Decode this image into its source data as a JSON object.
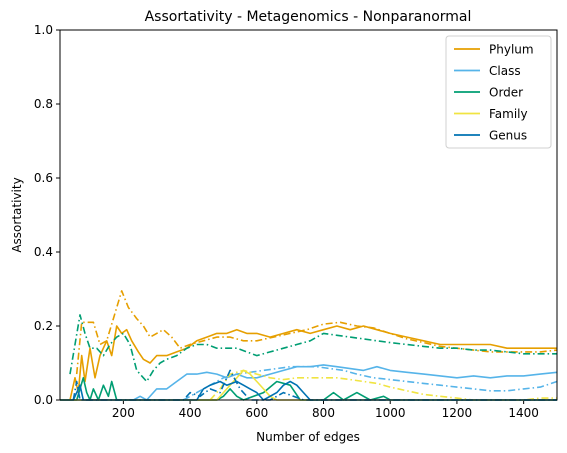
{
  "chart_data": {
    "type": "line",
    "title": "Assortativity - Metagenomics - Nonparanormal",
    "xlabel": "Number of edges",
    "ylabel": "Assortativity",
    "xlim": [
      10,
      1500
    ],
    "ylim": [
      0,
      1
    ],
    "xticks": [
      200,
      400,
      600,
      800,
      1000,
      1200,
      1400
    ],
    "yticks": [
      0.0,
      0.2,
      0.4,
      0.6,
      0.8,
      1.0
    ],
    "xtick_labels": [
      "200",
      "400",
      "600",
      "800",
      "1000",
      "1200",
      "1400"
    ],
    "ytick_labels": [
      "0.0",
      "0.2",
      "0.4",
      "0.6",
      "0.8",
      "1.0"
    ],
    "grid": false,
    "legend_position": "top-right",
    "legend": [
      "Phylum",
      "Class",
      "Order",
      "Family",
      "Genus"
    ],
    "series": [
      {
        "name": "Phylum",
        "style": "solid",
        "color": "#E69F00",
        "points": [
          [
            10,
            0
          ],
          [
            40,
            0
          ],
          [
            55,
            0.06
          ],
          [
            65,
            0.02
          ],
          [
            75,
            0.12
          ],
          [
            85,
            0.05
          ],
          [
            100,
            0.14
          ],
          [
            115,
            0.06
          ],
          [
            130,
            0.12
          ],
          [
            150,
            0.16
          ],
          [
            165,
            0.12
          ],
          [
            180,
            0.2
          ],
          [
            195,
            0.18
          ],
          [
            210,
            0.19
          ],
          [
            225,
            0.16
          ],
          [
            245,
            0.13
          ],
          [
            260,
            0.11
          ],
          [
            280,
            0.1
          ],
          [
            300,
            0.12
          ],
          [
            330,
            0.12
          ],
          [
            360,
            0.13
          ],
          [
            390,
            0.14
          ],
          [
            420,
            0.16
          ],
          [
            450,
            0.17
          ],
          [
            480,
            0.18
          ],
          [
            510,
            0.18
          ],
          [
            540,
            0.19
          ],
          [
            570,
            0.18
          ],
          [
            600,
            0.18
          ],
          [
            640,
            0.17
          ],
          [
            680,
            0.18
          ],
          [
            720,
            0.19
          ],
          [
            760,
            0.18
          ],
          [
            800,
            0.19
          ],
          [
            840,
            0.2
          ],
          [
            880,
            0.19
          ],
          [
            920,
            0.2
          ],
          [
            960,
            0.19
          ],
          [
            1000,
            0.18
          ],
          [
            1050,
            0.17
          ],
          [
            1100,
            0.16
          ],
          [
            1150,
            0.15
          ],
          [
            1200,
            0.15
          ],
          [
            1250,
            0.15
          ],
          [
            1300,
            0.15
          ],
          [
            1350,
            0.14
          ],
          [
            1400,
            0.14
          ],
          [
            1450,
            0.14
          ],
          [
            1500,
            0.14
          ]
        ]
      },
      {
        "name": "Phylum",
        "style": "dashdot",
        "color": "#E69F00",
        "points": [
          [
            60,
            0.07
          ],
          [
            75,
            0.21
          ],
          [
            90,
            0.21
          ],
          [
            110,
            0.21
          ],
          [
            130,
            0.15
          ],
          [
            150,
            0.16
          ],
          [
            170,
            0.22
          ],
          [
            195,
            0.295
          ],
          [
            215,
            0.25
          ],
          [
            240,
            0.22
          ],
          [
            260,
            0.2
          ],
          [
            280,
            0.17
          ],
          [
            300,
            0.18
          ],
          [
            320,
            0.19
          ],
          [
            345,
            0.17
          ],
          [
            370,
            0.14
          ],
          [
            400,
            0.15
          ],
          [
            440,
            0.16
          ],
          [
            480,
            0.17
          ],
          [
            520,
            0.17
          ],
          [
            560,
            0.16
          ],
          [
            600,
            0.16
          ],
          [
            650,
            0.17
          ],
          [
            700,
            0.18
          ],
          [
            750,
            0.19
          ],
          [
            800,
            0.205
          ],
          [
            850,
            0.21
          ],
          [
            900,
            0.2
          ],
          [
            950,
            0.195
          ],
          [
            1000,
            0.18
          ],
          [
            1050,
            0.165
          ],
          [
            1100,
            0.155
          ],
          [
            1150,
            0.145
          ],
          [
            1200,
            0.14
          ],
          [
            1250,
            0.135
          ],
          [
            1300,
            0.13
          ],
          [
            1350,
            0.13
          ],
          [
            1400,
            0.13
          ],
          [
            1450,
            0.13
          ],
          [
            1500,
            0.135
          ]
        ]
      },
      {
        "name": "Class",
        "style": "solid",
        "color": "#56B4E9",
        "points": [
          [
            10,
            0
          ],
          [
            230,
            0
          ],
          [
            250,
            0.01
          ],
          [
            270,
            0.0
          ],
          [
            300,
            0.03
          ],
          [
            330,
            0.03
          ],
          [
            360,
            0.05
          ],
          [
            390,
            0.07
          ],
          [
            420,
            0.07
          ],
          [
            450,
            0.075
          ],
          [
            480,
            0.07
          ],
          [
            510,
            0.06
          ],
          [
            540,
            0.07
          ],
          [
            570,
            0.06
          ],
          [
            600,
            0.06
          ],
          [
            640,
            0.07
          ],
          [
            680,
            0.08
          ],
          [
            720,
            0.09
          ],
          [
            760,
            0.09
          ],
          [
            800,
            0.095
          ],
          [
            840,
            0.09
          ],
          [
            880,
            0.085
          ],
          [
            920,
            0.08
          ],
          [
            960,
            0.09
          ],
          [
            1000,
            0.08
          ],
          [
            1050,
            0.075
          ],
          [
            1100,
            0.07
          ],
          [
            1150,
            0.065
          ],
          [
            1200,
            0.06
          ],
          [
            1250,
            0.065
          ],
          [
            1300,
            0.06
          ],
          [
            1350,
            0.065
          ],
          [
            1400,
            0.065
          ],
          [
            1450,
            0.07
          ],
          [
            1500,
            0.075
          ]
        ]
      },
      {
        "name": "Class",
        "style": "dashdot",
        "color": "#56B4E9",
        "points": [
          [
            380,
            0
          ],
          [
            420,
            0.02
          ],
          [
            460,
            0.04
          ],
          [
            500,
            0.06
          ],
          [
            540,
            0.07
          ],
          [
            580,
            0.075
          ],
          [
            620,
            0.08
          ],
          [
            660,
            0.085
          ],
          [
            700,
            0.09
          ],
          [
            740,
            0.09
          ],
          [
            780,
            0.09
          ],
          [
            820,
            0.085
          ],
          [
            860,
            0.08
          ],
          [
            900,
            0.07
          ],
          [
            950,
            0.06
          ],
          [
            1000,
            0.055
          ],
          [
            1050,
            0.05
          ],
          [
            1100,
            0.045
          ],
          [
            1150,
            0.04
          ],
          [
            1200,
            0.035
          ],
          [
            1250,
            0.03
          ],
          [
            1300,
            0.025
          ],
          [
            1350,
            0.025
          ],
          [
            1400,
            0.03
          ],
          [
            1450,
            0.035
          ],
          [
            1500,
            0.05
          ]
        ]
      },
      {
        "name": "Order",
        "style": "solid",
        "color": "#009E73",
        "points": [
          [
            10,
            0
          ],
          [
            60,
            0
          ],
          [
            70,
            0.03
          ],
          [
            80,
            0.06
          ],
          [
            90,
            0.02
          ],
          [
            100,
            0.0
          ],
          [
            110,
            0.03
          ],
          [
            125,
            0.0
          ],
          [
            140,
            0.04
          ],
          [
            155,
            0.01
          ],
          [
            165,
            0.05
          ],
          [
            180,
            0.0
          ],
          [
            480,
            0
          ],
          [
            500,
            0.01
          ],
          [
            520,
            0.03
          ],
          [
            540,
            0.01
          ],
          [
            560,
            0.0
          ],
          [
            620,
            0.02
          ],
          [
            660,
            0.05
          ],
          [
            700,
            0.04
          ],
          [
            730,
            0.0
          ],
          [
            800,
            0
          ],
          [
            830,
            0.02
          ],
          [
            860,
            0.0
          ],
          [
            900,
            0.02
          ],
          [
            940,
            0.0
          ],
          [
            980,
            0.01
          ],
          [
            1000,
            0
          ],
          [
            1500,
            0
          ]
        ]
      },
      {
        "name": "Order",
        "style": "dashdot",
        "color": "#009E73",
        "points": [
          [
            40,
            0.07
          ],
          [
            55,
            0.15
          ],
          [
            70,
            0.23
          ],
          [
            85,
            0.18
          ],
          [
            100,
            0.14
          ],
          [
            120,
            0.14
          ],
          [
            140,
            0.12
          ],
          [
            160,
            0.15
          ],
          [
            180,
            0.17
          ],
          [
            200,
            0.18
          ],
          [
            220,
            0.15
          ],
          [
            240,
            0.08
          ],
          [
            270,
            0.05
          ],
          [
            290,
            0.08
          ],
          [
            310,
            0.1
          ],
          [
            330,
            0.11
          ],
          [
            360,
            0.12
          ],
          [
            390,
            0.14
          ],
          [
            420,
            0.15
          ],
          [
            450,
            0.15
          ],
          [
            480,
            0.14
          ],
          [
            510,
            0.14
          ],
          [
            540,
            0.14
          ],
          [
            570,
            0.13
          ],
          [
            600,
            0.12
          ],
          [
            640,
            0.13
          ],
          [
            680,
            0.14
          ],
          [
            720,
            0.15
          ],
          [
            760,
            0.16
          ],
          [
            800,
            0.18
          ],
          [
            840,
            0.175
          ],
          [
            880,
            0.17
          ],
          [
            920,
            0.165
          ],
          [
            960,
            0.16
          ],
          [
            1000,
            0.155
          ],
          [
            1050,
            0.15
          ],
          [
            1100,
            0.145
          ],
          [
            1150,
            0.14
          ],
          [
            1200,
            0.14
          ],
          [
            1250,
            0.135
          ],
          [
            1300,
            0.135
          ],
          [
            1350,
            0.13
          ],
          [
            1400,
            0.125
          ],
          [
            1450,
            0.125
          ],
          [
            1500,
            0.125
          ]
        ]
      },
      {
        "name": "Family",
        "style": "solid",
        "color": "#F0E442",
        "points": [
          [
            10,
            0
          ],
          [
            480,
            0
          ],
          [
            500,
            0.02
          ],
          [
            520,
            0.04
          ],
          [
            540,
            0.06
          ],
          [
            560,
            0.08
          ],
          [
            580,
            0.07
          ],
          [
            600,
            0.05
          ],
          [
            620,
            0.03
          ],
          [
            640,
            0.01
          ],
          [
            660,
            0
          ],
          [
            1500,
            0
          ]
        ]
      },
      {
        "name": "Family",
        "style": "dashdot",
        "color": "#F0E442",
        "points": [
          [
            460,
            0
          ],
          [
            490,
            0.03
          ],
          [
            520,
            0.07
          ],
          [
            560,
            0.08
          ],
          [
            600,
            0.07
          ],
          [
            640,
            0.06
          ],
          [
            680,
            0.055
          ],
          [
            720,
            0.06
          ],
          [
            760,
            0.06
          ],
          [
            800,
            0.06
          ],
          [
            840,
            0.06
          ],
          [
            880,
            0.055
          ],
          [
            920,
            0.05
          ],
          [
            960,
            0.045
          ],
          [
            1000,
            0.035
          ],
          [
            1050,
            0.025
          ],
          [
            1100,
            0.015
          ],
          [
            1150,
            0.01
          ],
          [
            1200,
            0.005
          ],
          [
            1250,
            0
          ],
          [
            1400,
            0
          ],
          [
            1450,
            0.005
          ],
          [
            1500,
            0.005
          ]
        ]
      },
      {
        "name": "Genus",
        "style": "solid",
        "color": "#0072B2",
        "points": [
          [
            10,
            0
          ],
          [
            50,
            0
          ],
          [
            60,
            0.02
          ],
          [
            70,
            0.04
          ],
          [
            80,
            0.0
          ],
          [
            95,
            0
          ],
          [
            420,
            0
          ],
          [
            440,
            0.03
          ],
          [
            460,
            0.04
          ],
          [
            490,
            0.05
          ],
          [
            510,
            0.04
          ],
          [
            540,
            0.05
          ],
          [
            560,
            0.04
          ],
          [
            580,
            0.03
          ],
          [
            600,
            0.02
          ],
          [
            620,
            0.0
          ],
          [
            660,
            0.02
          ],
          [
            680,
            0.04
          ],
          [
            700,
            0.05
          ],
          [
            720,
            0.04
          ],
          [
            740,
            0.02
          ],
          [
            760,
            0.0
          ],
          [
            1500,
            0
          ]
        ]
      },
      {
        "name": "Genus",
        "style": "dashdot",
        "color": "#0072B2",
        "points": [
          [
            50,
            0
          ],
          [
            60,
            0.05
          ],
          [
            70,
            0.0
          ],
          [
            85,
            0.0
          ],
          [
            100,
            0
          ],
          [
            380,
            0
          ],
          [
            400,
            0.02
          ],
          [
            430,
            0.01
          ],
          [
            460,
            0.03
          ],
          [
            490,
            0.02
          ],
          [
            520,
            0.08
          ],
          [
            550,
            0.03
          ],
          [
            580,
            0.0
          ],
          [
            640,
            0
          ],
          [
            680,
            0.02
          ],
          [
            710,
            0.01
          ],
          [
            740,
            0.0
          ],
          [
            1500,
            0
          ]
        ]
      }
    ]
  }
}
